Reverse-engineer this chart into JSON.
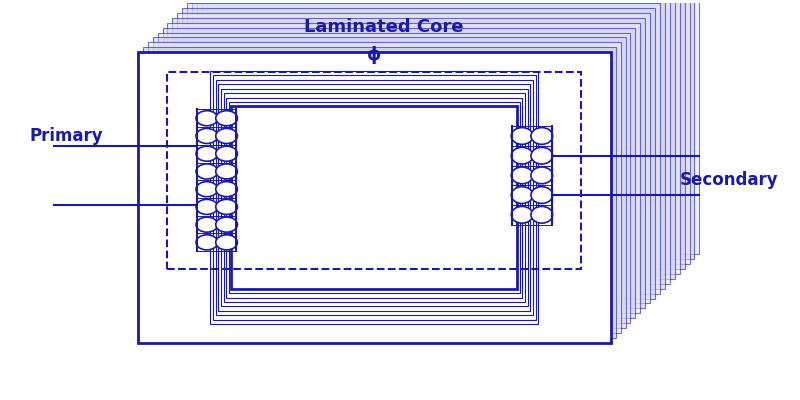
{
  "bg_color": "#ffffff",
  "main_color": "#1a1aaa",
  "title": "Laminated Core",
  "label_primary": "Primary",
  "label_secondary": "Secondary",
  "label_phi": "ϕ",
  "figsize": [
    8.0,
    4.0
  ],
  "dpi": 100
}
